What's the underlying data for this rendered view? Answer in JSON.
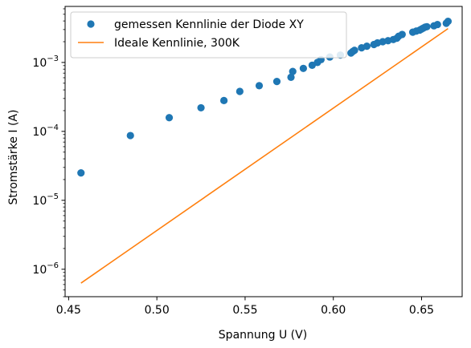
{
  "chart_data": {
    "type": "scatter",
    "xlabel": "Spannung U (V)",
    "ylabel": "Stromstärke I (A)",
    "xlim": [
      0.448,
      0.673
    ],
    "ylim": [
      4e-07,
      0.0065
    ],
    "yscale": "log",
    "grid": false,
    "legend_position": "top-left",
    "x_ticks": [
      {
        "value": 0.45,
        "label": "0.45"
      },
      {
        "value": 0.5,
        "label": "0.50"
      },
      {
        "value": 0.55,
        "label": "0.55"
      },
      {
        "value": 0.6,
        "label": "0.60"
      },
      {
        "value": 0.65,
        "label": "0.65"
      }
    ],
    "y_ticks": [
      {
        "value": 1e-06,
        "base": "10",
        "exp": "−6"
      },
      {
        "value": 1e-05,
        "base": "10",
        "exp": "−5"
      },
      {
        "value": 0.0001,
        "base": "10",
        "exp": "−4"
      },
      {
        "value": 0.001,
        "base": "10",
        "exp": "−3"
      }
    ],
    "series": [
      {
        "name": "gemessen Kennlinie der Diode XY",
        "kind": "markers",
        "color": "#1f77b4",
        "x": [
          0.457,
          0.485,
          0.507,
          0.525,
          0.538,
          0.547,
          0.558,
          0.568,
          0.576,
          0.577,
          0.583,
          0.588,
          0.591,
          0.593,
          0.598,
          0.604,
          0.61,
          0.611,
          0.612,
          0.616,
          0.619,
          0.623,
          0.625,
          0.628,
          0.631,
          0.634,
          0.636,
          0.637,
          0.639,
          0.645,
          0.647,
          0.649,
          0.65,
          0.651,
          0.652,
          0.653,
          0.657,
          0.659,
          0.664,
          0.665
        ],
        "y": [
          2.5e-05,
          8.7e-05,
          0.000158,
          0.00022,
          0.00028,
          0.00038,
          0.00046,
          0.00053,
          0.00061,
          0.00074,
          0.00082,
          0.00091,
          0.001,
          0.0011,
          0.0012,
          0.00128,
          0.00137,
          0.00144,
          0.0015,
          0.00163,
          0.00172,
          0.00182,
          0.00192,
          0.002,
          0.00207,
          0.00215,
          0.00225,
          0.0024,
          0.00255,
          0.00275,
          0.00285,
          0.00295,
          0.00305,
          0.00315,
          0.00325,
          0.0033,
          0.0034,
          0.00355,
          0.0037,
          0.00395
        ]
      },
      {
        "name": "Ideale Kennlinie, 300K",
        "kind": "line",
        "color": "#ff7f0e",
        "x": [
          0.457,
          0.665
        ],
        "y": [
          6.3e-07,
          0.0031
        ]
      }
    ]
  }
}
